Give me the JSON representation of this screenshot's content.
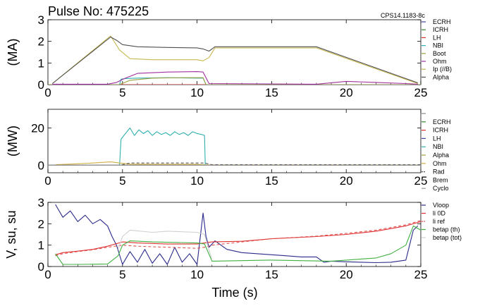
{
  "header": {
    "title": "Pulse No: 475225",
    "code": "CPS14.1183-8c"
  },
  "chart_data": [
    {
      "type": "line",
      "ylabel": "(MA)",
      "xlim": [
        0,
        25
      ],
      "ylim": [
        0,
        3
      ],
      "xticks": [
        "0",
        "5",
        "10",
        "15",
        "20",
        "25"
      ],
      "yticks": [
        "0",
        "1",
        "2",
        "3"
      ],
      "series": [
        {
          "name": "ECRH",
          "color": "#4040a0",
          "x": [
            0,
            25
          ],
          "y": [
            0,
            0
          ]
        },
        {
          "name": "ICRH",
          "color": "#2e8b2e",
          "x": [
            0,
            25
          ],
          "y": [
            0,
            0
          ]
        },
        {
          "name": "LH",
          "color": "#e03030",
          "x": [
            0,
            25
          ],
          "y": [
            0,
            0
          ]
        },
        {
          "name": "NBI",
          "color": "#30b0b0",
          "x": [
            0,
            4.8,
            4.9,
            5.2,
            6,
            8,
            10,
            10.4,
            10.6,
            25
          ],
          "y": [
            0,
            0,
            0.25,
            0.28,
            0.3,
            0.32,
            0.3,
            0.3,
            0,
            0
          ]
        },
        {
          "name": "Boot",
          "color": "#a0a040",
          "x": [
            0,
            4.8,
            5.5,
            7,
            9,
            10.4,
            10.6,
            25
          ],
          "y": [
            0,
            0,
            0.2,
            0.3,
            0.32,
            0.32,
            0,
            0
          ]
        },
        {
          "name": "Ohm",
          "color": "#a030a0",
          "x": [
            0.3,
            4,
            4.6,
            5.2,
            6,
            8,
            10,
            10.4,
            10.8,
            18,
            20,
            22,
            24,
            24.8
          ],
          "y": [
            0.02,
            0.02,
            0.1,
            0.3,
            0.52,
            0.58,
            0.6,
            0.58,
            0.05,
            0.02,
            0.15,
            0.1,
            0.05,
            0.02
          ]
        },
        {
          "name": "Ip (//B)",
          "color": "#c8b850",
          "x": [
            0.3,
            4.2,
            4.8,
            5.5,
            7,
            10,
            10.4,
            10.8,
            11.2,
            18,
            24.8
          ],
          "y": [
            0.05,
            2.25,
            1.6,
            1.2,
            1.15,
            1.15,
            1.1,
            1.25,
            1.7,
            1.7,
            0.05
          ]
        },
        {
          "name": "Alpha",
          "color": "#505050",
          "x": [
            0.3,
            4.2,
            4.6,
            5,
            6,
            8,
            10,
            10.4,
            10.8,
            11.2,
            18,
            24.8
          ],
          "y": [
            0.05,
            2.2,
            2.05,
            1.85,
            1.75,
            1.72,
            1.7,
            1.65,
            1.55,
            1.75,
            1.75,
            0.08
          ]
        }
      ]
    },
    {
      "type": "line",
      "ylabel": "(MW)",
      "xlim": [
        0,
        25
      ],
      "ylim": [
        -4,
        30
      ],
      "xticks": [
        "0",
        "5",
        "10",
        "15",
        "20",
        "25"
      ],
      "yticks": [
        "0",
        "20"
      ],
      "series": [
        {
          "name": "",
          "color": "#888888",
          "x": [
            0,
            25
          ],
          "y": [
            0,
            0
          ]
        },
        {
          "name": "ECRH",
          "color": "#2e8b2e",
          "x": [
            0,
            25
          ],
          "y": [
            0,
            0
          ]
        },
        {
          "name": "ICRH",
          "color": "#e03030",
          "x": [
            0,
            25
          ],
          "y": [
            0,
            0
          ]
        },
        {
          "name": "LH",
          "color": "#4040a0",
          "x": [
            0,
            25
          ],
          "y": [
            0,
            0
          ]
        },
        {
          "name": "NBI",
          "color": "#30b0b0",
          "x": [
            0,
            4.8,
            4.9,
            5.2,
            5.5,
            5.8,
            6.1,
            6.4,
            6.7,
            7,
            7.3,
            7.6,
            7.9,
            8.2,
            8.5,
            8.8,
            9.1,
            9.4,
            9.7,
            10,
            10.3,
            10.5,
            10.55,
            25
          ],
          "y": [
            0,
            0,
            14,
            17,
            20,
            16,
            19,
            17,
            18.5,
            16,
            18,
            16.5,
            17.5,
            16,
            18,
            16.5,
            17.5,
            16,
            18,
            17,
            16.5,
            16,
            0,
            0
          ]
        },
        {
          "name": "Alpha",
          "color": "#a0a040",
          "x": [
            0,
            25
          ],
          "y": [
            0,
            0
          ]
        },
        {
          "name": "Ohm",
          "color": "#d0b040",
          "x": [
            0.5,
            2,
            3,
            4.2,
            4.8,
            5.5,
            7,
            10,
            10.6,
            15,
            20,
            25
          ],
          "y": [
            0.3,
            0.8,
            1.2,
            1.8,
            1.2,
            0.6,
            0.5,
            0.5,
            0.2,
            0.2,
            0.2,
            0.1
          ]
        },
        {
          "name": "Rad",
          "color": "#555555",
          "x": [
            0,
            4.8,
            5.5,
            10.5,
            11,
            25
          ],
          "y": [
            0,
            0,
            1.2,
            1.2,
            0.3,
            0.3
          ]
        },
        {
          "name": "Brem",
          "color": "#777777",
          "x": [
            0,
            25
          ],
          "y": [
            0.1,
            0.1
          ]
        },
        {
          "name": "Cyclo",
          "color": "#999999",
          "x": [
            0,
            25
          ],
          "y": [
            0,
            0
          ]
        }
      ]
    },
    {
      "type": "line",
      "xlabel": "Time (s)",
      "ylabel": "V, su, su",
      "xlim": [
        0,
        25
      ],
      "ylim": [
        0,
        3
      ],
      "xticks": [
        "0",
        "5",
        "10",
        "15",
        "20",
        "25"
      ],
      "yticks": [
        "0",
        "1",
        "2",
        "3"
      ],
      "series": [
        {
          "name": "Vloop",
          "color": "#2a2a8a",
          "x": [
            0.5,
            1.0,
            1.5,
            2,
            2.5,
            3,
            3.5,
            4,
            4.3,
            4.6,
            5,
            5.5,
            6,
            6.5,
            7,
            7.5,
            8,
            8.5,
            9,
            9.5,
            10,
            10.4,
            10.6,
            10.8,
            11.2,
            12,
            13,
            14,
            15,
            16,
            17,
            18,
            18.5,
            19,
            20,
            21,
            22,
            23,
            24,
            24.5,
            24.8
          ],
          "y": [
            2.9,
            2.3,
            2.6,
            2.1,
            2.4,
            2.0,
            2.2,
            1.9,
            1.4,
            1.0,
            0.1,
            0.7,
            0.2,
            0.8,
            0.15,
            0.6,
            0.1,
            0.9,
            0.2,
            0.6,
            0.1,
            2.5,
            1.4,
            0.9,
            1.2,
            0.8,
            0.65,
            0.6,
            0.55,
            0.5,
            0.45,
            0.45,
            0.2,
            0.25,
            0.22,
            0.2,
            0.18,
            0.2,
            0.3,
            1.7,
            1.9
          ]
        },
        {
          "name": "li 0D",
          "color": "#e03030",
          "x": [
            0.5,
            1,
            2,
            3,
            4,
            5,
            6,
            8,
            10,
            10.5,
            11,
            13,
            15,
            18,
            20,
            22,
            24,
            25
          ],
          "y": [
            0.55,
            0.65,
            0.72,
            0.8,
            0.95,
            1.15,
            1.1,
            1.05,
            1.05,
            1.1,
            1.15,
            1.18,
            1.3,
            1.4,
            1.5,
            1.65,
            1.9,
            2.1
          ]
        },
        {
          "name": "li ref",
          "color": "#e05050",
          "x": [
            0.5,
            1,
            2,
            3,
            4,
            5,
            6,
            8,
            10,
            10.5,
            11,
            13,
            15,
            18,
            20,
            22,
            24,
            25
          ],
          "y": [
            0.5,
            0.6,
            0.7,
            0.78,
            0.9,
            1.0,
            0.95,
            0.9,
            0.85,
            0.9,
            1.0,
            1.15,
            1.3,
            1.42,
            1.55,
            1.7,
            1.95,
            2.15
          ]
        },
        {
          "name": "betap (th)",
          "color": "#40b040",
          "x": [
            0.5,
            1,
            2,
            4,
            4.7,
            5,
            5.5,
            7,
            10,
            10.5,
            11,
            15,
            19,
            20,
            22,
            23,
            24,
            24.5,
            25
          ],
          "y": [
            0.6,
            0.1,
            0.1,
            0.12,
            0.5,
            1.0,
            1.2,
            1.15,
            1.1,
            1.05,
            0.25,
            0.3,
            0.25,
            0.3,
            0.4,
            0.6,
            1.0,
            1.9,
            1.7
          ]
        },
        {
          "name": "betap (tot)",
          "color": "#d0d0d0",
          "x": [
            4.7,
            5,
            5.5,
            7,
            8,
            10,
            10.5,
            11
          ],
          "y": [
            0.8,
            1.4,
            1.7,
            1.6,
            1.65,
            1.6,
            1.5,
            0.3
          ]
        }
      ]
    }
  ]
}
